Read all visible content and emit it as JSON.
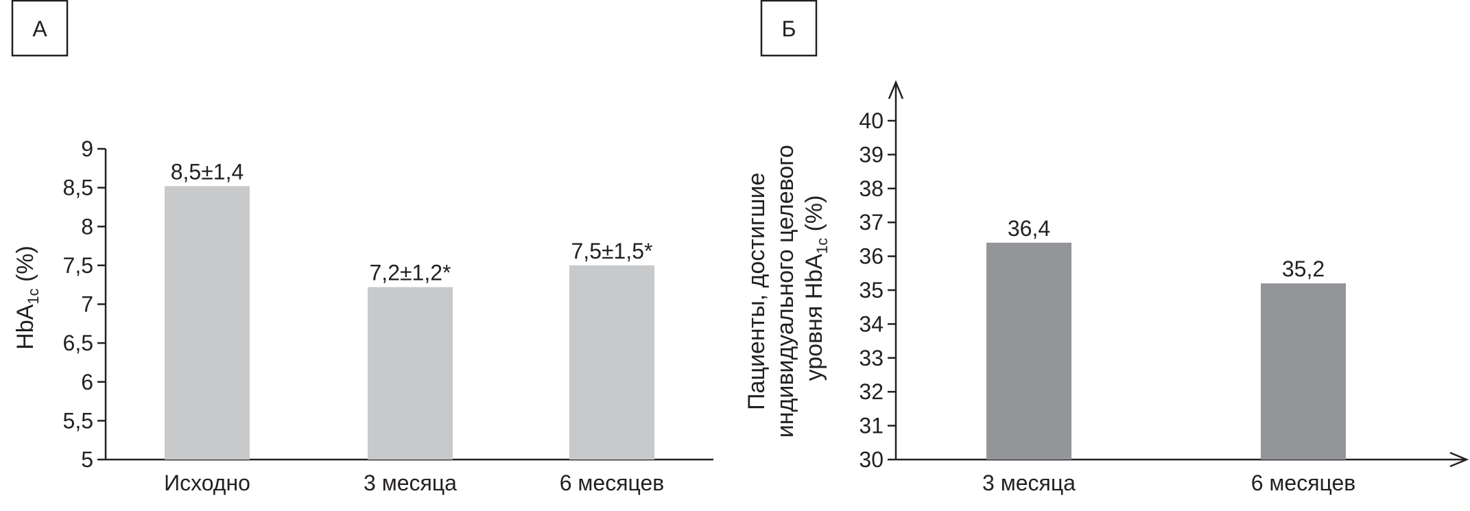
{
  "panel_labels": [
    "А",
    "Б"
  ],
  "colors": {
    "panel_a_bar": "#c8c9cb",
    "panel_b_bar": "#939598",
    "axis": "#231f20",
    "text": "#231f20"
  },
  "chart_data": [
    {
      "type": "bar",
      "panel": "А",
      "categories": [
        "Исходно",
        "3 месяца",
        "6 месяцев"
      ],
      "values": [
        8.52,
        7.22,
        7.5
      ],
      "data_labels": [
        "8,5±1,4",
        "7,2±1,2*",
        "7,5±1,5*"
      ],
      "ylabel": {
        "main": "HbA",
        "sub": "1c",
        "tail": " (%)"
      },
      "xlabel": "",
      "ylim": [
        5,
        9
      ],
      "yticks": [
        5,
        5.5,
        6,
        6.5,
        7,
        7.5,
        8,
        8.5,
        9
      ],
      "ytick_labels": [
        "5",
        "5,5",
        "6",
        "6,5",
        "7",
        "7,5",
        "8",
        "8,5",
        "9"
      ],
      "grid": false,
      "legend": "none"
    },
    {
      "type": "bar",
      "panel": "Б",
      "categories": [
        "3 месяца",
        "6 месяцев"
      ],
      "values": [
        36.4,
        35.2
      ],
      "data_labels": [
        "36,4",
        "35,2"
      ],
      "ylabel": {
        "line1": "Пациенты, достигшие",
        "line2": "индивидуального целевого",
        "line3_main": "уровня HbA",
        "line3_sub": "1c",
        "line3_tail": " (%)"
      },
      "xlabel": "",
      "ylim": [
        30,
        40
      ],
      "yticks": [
        30,
        31,
        32,
        33,
        34,
        35,
        36,
        37,
        38,
        39,
        40
      ],
      "ytick_labels": [
        "30",
        "31",
        "32",
        "33",
        "34",
        "35",
        "36",
        "37",
        "38",
        "39",
        "40"
      ],
      "grid": false,
      "legend": "none"
    }
  ]
}
